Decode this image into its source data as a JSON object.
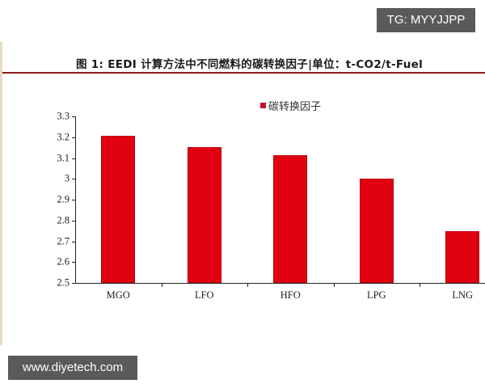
{
  "overlays": {
    "tg_badge": "TG: MYYJJPP",
    "site_badge": "www.diyetech.com"
  },
  "figure_title": "图 1: EEDI 计算方法中不同燃料的碳转换因子|单位：t-CO2/t-Fuel",
  "colors": {
    "bar": "#e0000f",
    "legend_swatch": "#c0142a",
    "title_rule": "#8b1a1a",
    "badge_bg": "#5a5a5a"
  },
  "chart_data": {
    "type": "bar",
    "title": "图 1: EEDI 计算方法中不同燃料的碳转换因子|单位：t-CO2/t-Fuel",
    "xlabel": "",
    "ylabel": "",
    "categories": [
      "MGO",
      "LFO",
      "HFO",
      "LPG",
      "LNG"
    ],
    "series": [
      {
        "name": "碳转换因子",
        "values": [
          3.206,
          3.151,
          3.114,
          3.0,
          2.75
        ]
      }
    ],
    "ylim": [
      2.5,
      3.3
    ],
    "yticks": [
      "3.3",
      "3.2",
      "3.1",
      "3",
      "2.9",
      "2.8",
      "2.7",
      "2.6",
      "2.5"
    ],
    "ytick_values": [
      3.3,
      3.2,
      3.1,
      3.0,
      2.9,
      2.8,
      2.7,
      2.6,
      2.5
    ],
    "legend_position": "top-center",
    "grid": false
  }
}
